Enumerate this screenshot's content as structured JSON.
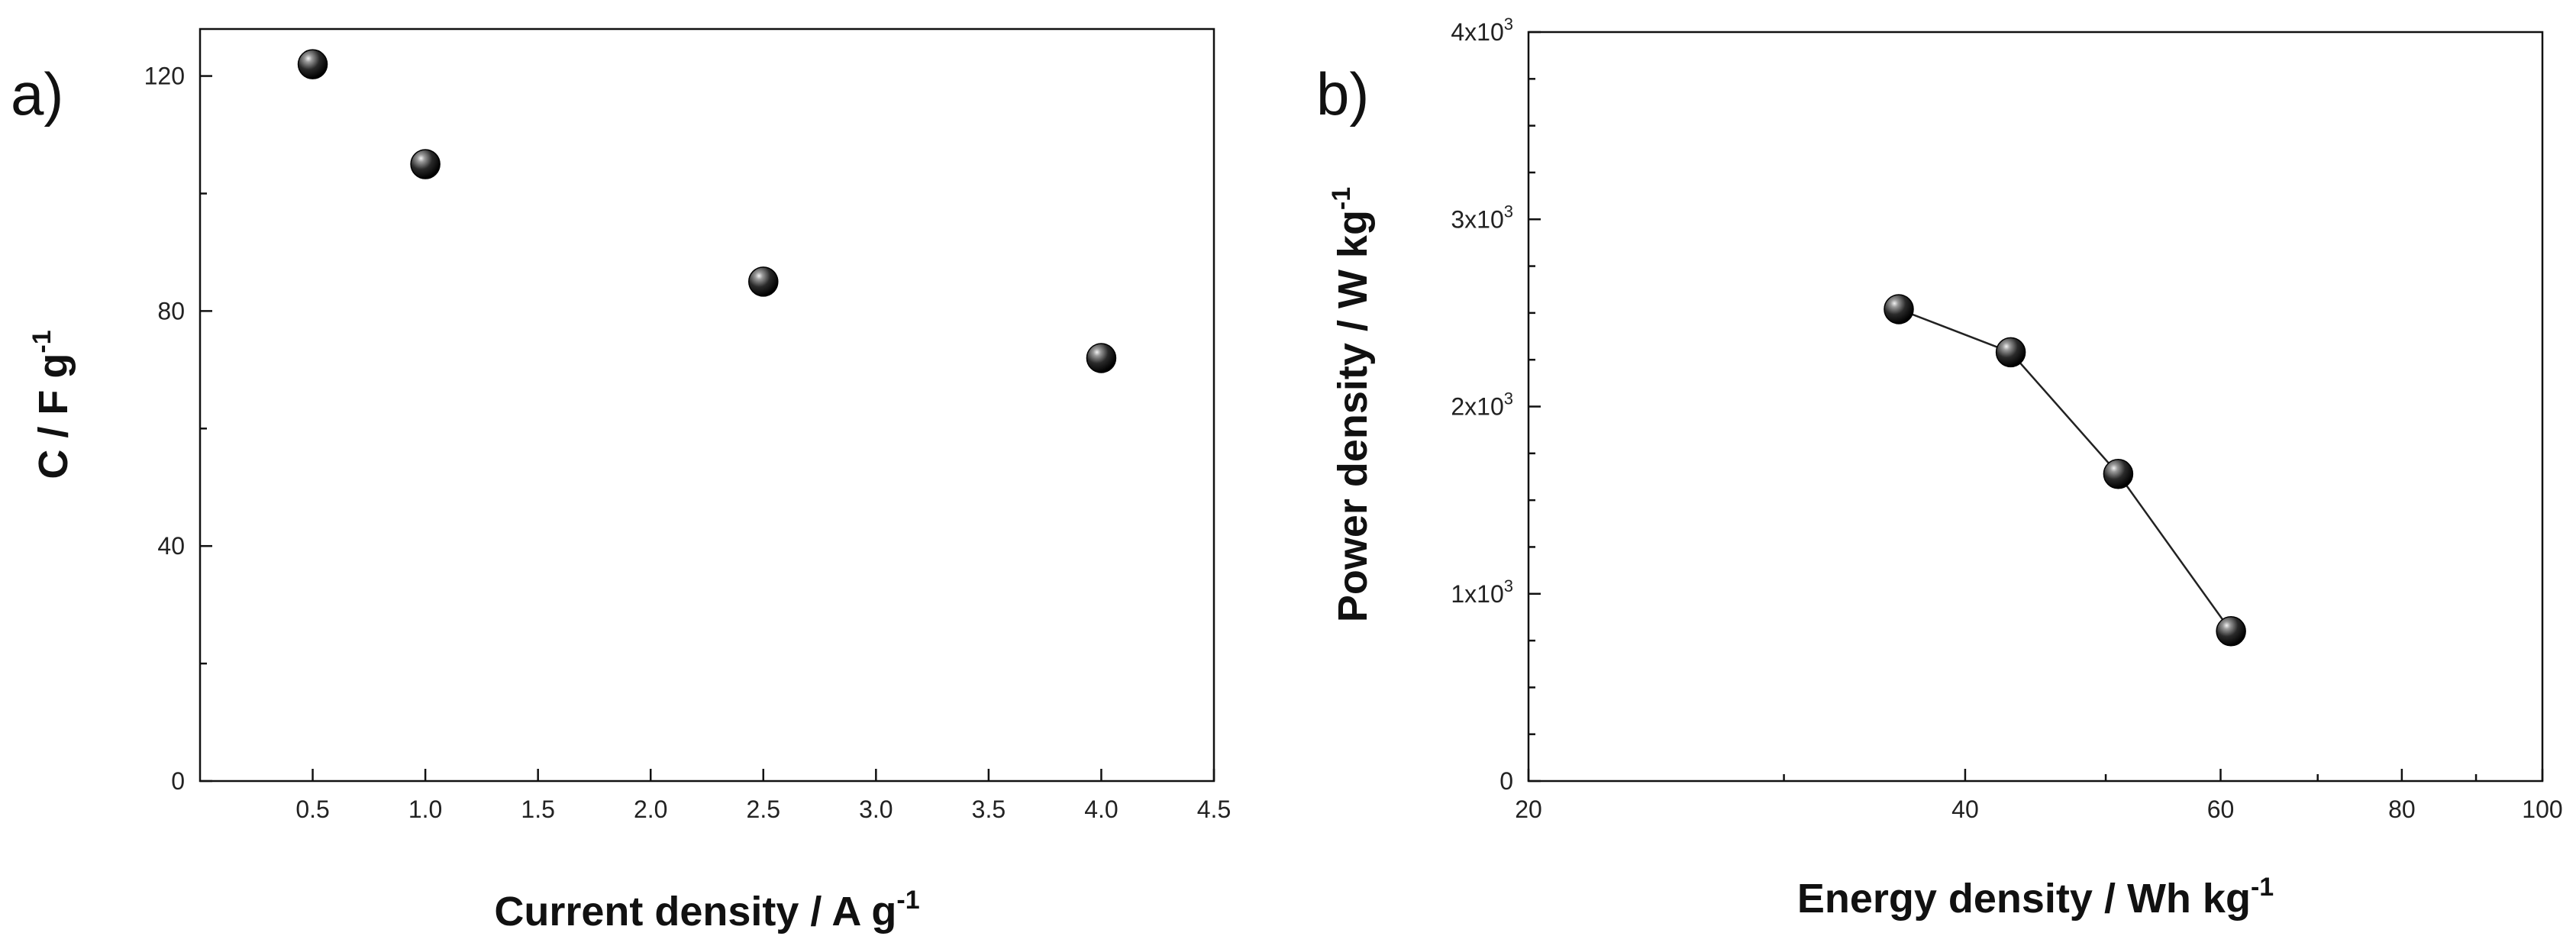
{
  "chart_data": [
    {
      "panel": "a)",
      "type": "scatter",
      "xlabel": "Current density / A g",
      "xlabel_sup": "-1",
      "ylabel": "C / F g",
      "ylabel_sup": "-1",
      "xlim": [
        0.0,
        4.5
      ],
      "ylim": [
        0,
        128
      ],
      "xticks": [
        0.5,
        1.0,
        1.5,
        2.0,
        2.5,
        3.0,
        3.5,
        4.0,
        4.5
      ],
      "xtick_labels": [
        "0.5",
        "1.0",
        "1.5",
        "2.0",
        "2.5",
        "3.0",
        "3.5",
        "4.0",
        "4.5"
      ],
      "yticks": [
        0,
        40,
        80,
        120
      ],
      "ytick_labels": [
        "0",
        "40",
        "80",
        "120"
      ],
      "yminor": [
        20,
        60,
        100
      ],
      "grid": false,
      "series": [
        {
          "x": [
            0.5,
            1.0,
            2.5,
            4.0
          ],
          "y": [
            122,
            105,
            85,
            72
          ]
        }
      ]
    },
    {
      "panel": "b)",
      "type": "line",
      "xscale": "log",
      "xlabel": "Energy density / Wh kg",
      "xlabel_sup": "-1",
      "ylabel": "Power density / W kg",
      "ylabel_sup": "-1",
      "xlim": [
        20,
        100
      ],
      "ylim": [
        0,
        4000
      ],
      "xticks": [
        20,
        40,
        60,
        80,
        100
      ],
      "xtick_labels": [
        "20",
        "40",
        "60",
        "80",
        "100"
      ],
      "xminor": [
        30,
        50,
        70,
        90
      ],
      "yticks": [
        0,
        1000,
        2000,
        3000,
        4000
      ],
      "ytick_labels": [
        {
          "base": "0",
          "exp": ""
        },
        {
          "base": "1x10",
          "exp": "3"
        },
        {
          "base": "2x10",
          "exp": "3"
        },
        {
          "base": "3x10",
          "exp": "3"
        },
        {
          "base": "4x10",
          "exp": "3"
        }
      ],
      "grid": false,
      "series": [
        {
          "x": [
            36,
            43,
            51,
            61
          ],
          "y": [
            2520,
            2290,
            1640,
            800
          ]
        }
      ]
    }
  ]
}
